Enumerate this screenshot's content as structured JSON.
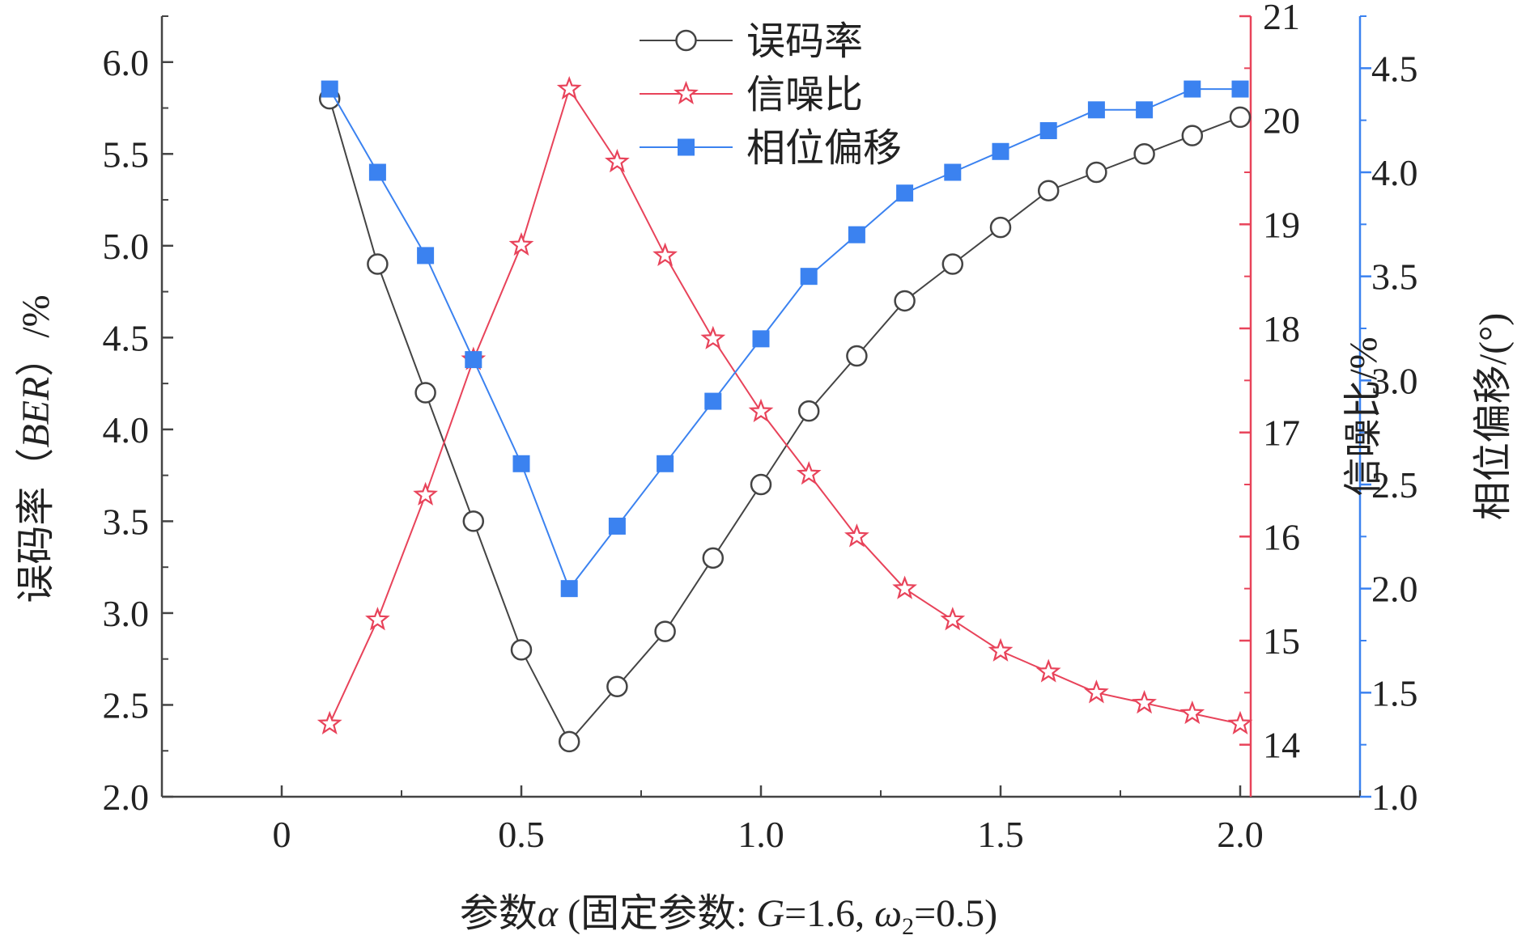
{
  "chart_data": {
    "type": "line",
    "x": [
      0.1,
      0.2,
      0.3,
      0.4,
      0.5,
      0.6,
      0.7,
      0.8,
      0.9,
      1.0,
      1.1,
      1.2,
      1.3,
      1.4,
      1.5,
      1.6,
      1.7,
      1.8,
      1.9,
      2.0
    ],
    "xlabel": {
      "prefix": "参数",
      "alpha": "α",
      "mid": " (固定参数: ",
      "g": "G",
      "g_eq": "=1.6, ",
      "omega": "ω",
      "omega_sub": "2",
      "suffix": "=0.5)"
    },
    "xlim": [
      -0.25,
      2.25
    ],
    "x_ticks": [
      0,
      0.5,
      1.0,
      1.5,
      2.0
    ],
    "x_tick_labels": [
      "0",
      "0.5",
      "1.0",
      "1.5",
      "2.0"
    ],
    "axes": {
      "left": {
        "label_prefix": "误码率（",
        "label_italic": "BER",
        "label_suffix": "）/%",
        "ylim": [
          2.0,
          6.25
        ],
        "ticks": [
          2.0,
          2.5,
          3.0,
          3.5,
          4.0,
          4.5,
          5.0,
          5.5,
          6.0
        ],
        "tick_labels": [
          "2.0",
          "2.5",
          "3.0",
          "3.5",
          "4.0",
          "4.5",
          "5.0",
          "5.5",
          "6.0"
        ],
        "color": "#444444"
      },
      "right1": {
        "label": "信噪比/%",
        "ylim": [
          13.5,
          21
        ],
        "ticks": [
          14,
          15,
          16,
          17,
          18,
          19,
          20,
          21
        ],
        "tick_labels": [
          "14",
          "15",
          "16",
          "17",
          "18",
          "19",
          "20",
          "21"
        ],
        "color": "#e8435a"
      },
      "right2": {
        "label": "相位偏移/(°)",
        "ylim": [
          1.0,
          4.75
        ],
        "ticks": [
          1.0,
          1.5,
          2.0,
          2.5,
          3.0,
          3.5,
          4.0,
          4.5
        ],
        "tick_labels": [
          "1.0",
          "1.5",
          "2.0",
          "2.5",
          "3.0",
          "3.5",
          "4.0",
          "4.5"
        ],
        "color": "#3b82f0"
      }
    },
    "series": [
      {
        "name": "误码率",
        "axis": "left",
        "marker": "circle",
        "color": "#444444",
        "values": [
          5.8,
          4.9,
          4.2,
          3.5,
          2.8,
          2.3,
          2.6,
          2.9,
          3.3,
          3.7,
          4.1,
          4.4,
          4.7,
          4.9,
          5.1,
          5.3,
          5.4,
          5.5,
          5.6,
          5.7
        ]
      },
      {
        "name": "信噪比",
        "axis": "right1",
        "marker": "star",
        "color": "#e8435a",
        "values": [
          14.2,
          15.2,
          16.4,
          17.7,
          18.8,
          20.3,
          19.6,
          18.7,
          17.9,
          17.2,
          16.6,
          16.0,
          15.5,
          15.2,
          14.9,
          14.7,
          14.5,
          14.4,
          14.3,
          14.2
        ]
      },
      {
        "name": "相位偏移",
        "axis": "right2",
        "marker": "square",
        "color": "#3b82f0",
        "values": [
          4.4,
          4.0,
          3.6,
          3.1,
          2.6,
          2.0,
          2.3,
          2.6,
          2.9,
          3.2,
          3.5,
          3.7,
          3.9,
          4.0,
          4.1,
          4.2,
          4.3,
          4.3,
          4.4,
          4.4
        ]
      }
    ],
    "legend": {
      "position": "top-center",
      "entries": [
        "误码率",
        "信噪比",
        "相位偏移"
      ]
    }
  }
}
